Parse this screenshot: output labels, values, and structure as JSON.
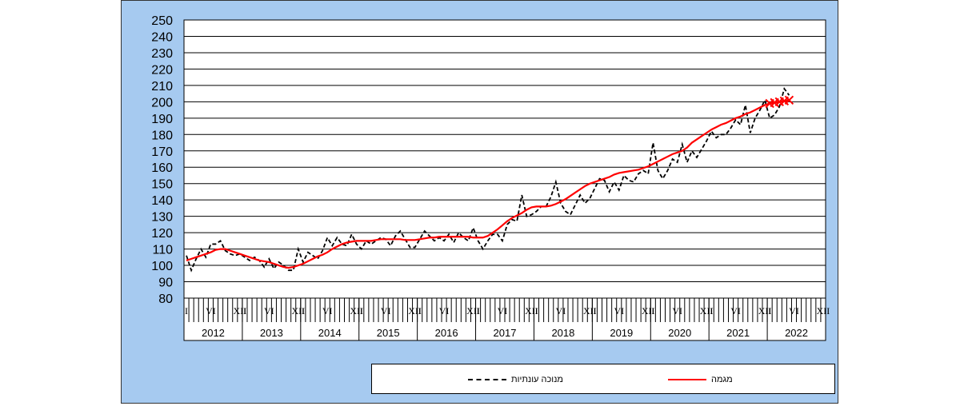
{
  "colors": {
    "background": "#a6caf0",
    "plot": "#ffffff",
    "trend": "#ff0000",
    "seasonal": "#000000"
  },
  "legend": {
    "trend_label": "מגמה",
    "seasonal_label": "מנוכה עונתיות"
  },
  "chart_data": {
    "type": "line",
    "title": "",
    "xlabel": "",
    "ylabel": "",
    "ylim": [
      80,
      250
    ],
    "yticks": [
      80,
      90,
      100,
      110,
      120,
      130,
      140,
      150,
      160,
      170,
      180,
      190,
      200,
      210,
      220,
      230,
      240,
      250
    ],
    "grid": true,
    "legend_position": "bottom",
    "years": [
      "2012",
      "2013",
      "2014",
      "2015",
      "2016",
      "2017",
      "2018",
      "2019",
      "2020",
      "2021",
      "2022"
    ],
    "month_markers": [
      "I",
      "VI",
      "XII"
    ],
    "series": [
      {
        "name": "מנוכה עונתיות",
        "style": "dashed",
        "values": [
          106,
          97,
          104,
          110,
          105,
          113,
          113,
          115,
          109,
          107,
          106,
          107,
          105,
          103,
          105,
          103,
          99,
          104,
          98,
          102,
          100,
          97,
          97,
          110,
          102,
          108,
          106,
          104,
          109,
          117,
          112,
          117,
          113,
          112,
          119,
          113,
          110,
          115,
          113,
          115,
          117,
          116,
          112,
          118,
          121,
          116,
          111,
          111,
          116,
          121,
          118,
          115,
          117,
          115,
          119,
          114,
          120,
          117,
          115,
          123,
          115,
          110,
          115,
          119,
          119,
          115,
          125,
          128,
          127,
          143,
          130,
          131,
          133,
          136,
          136,
          142,
          151,
          138,
          133,
          131,
          137,
          143,
          138,
          141,
          147,
          153,
          152,
          145,
          151,
          146,
          155,
          152,
          151,
          156,
          158,
          156,
          175,
          158,
          153,
          158,
          165,
          163,
          174,
          163,
          170,
          166,
          171,
          176,
          182,
          178,
          180,
          180,
          184,
          189,
          186,
          198,
          181,
          190,
          195,
          201,
          190,
          192,
          197,
          208,
          204
        ]
      },
      {
        "name": "מגמה",
        "style": "solid",
        "values": [
          103,
          104,
          105,
          106,
          107,
          108,
          109.5,
          110,
          110,
          109,
          108,
          107,
          106,
          105,
          104,
          103,
          102.5,
          102,
          101,
          100,
          99,
          98.5,
          99,
          100,
          101,
          102.5,
          104,
          105.5,
          106.5,
          108,
          110,
          111.5,
          113,
          114,
          114.5,
          115,
          115,
          115,
          115,
          115.5,
          116,
          116,
          116,
          116,
          116,
          115.5,
          115.5,
          115.5,
          116,
          116.5,
          117,
          117,
          117.5,
          117.5,
          117.5,
          117.5,
          117.5,
          117.5,
          117.5,
          117,
          117,
          117,
          118,
          120,
          122,
          124.5,
          127,
          129,
          130.5,
          132,
          134,
          135.5,
          136,
          136,
          136,
          136.5,
          137.5,
          139,
          140.5,
          142.5,
          144.5,
          146.5,
          148.5,
          150,
          151,
          152,
          153,
          154,
          155.5,
          156.5,
          157,
          157.5,
          158,
          158.5,
          159.5,
          160.5,
          162,
          163.5,
          165,
          166.5,
          168,
          169,
          170,
          172,
          175,
          177,
          179,
          181,
          183,
          184.5,
          186,
          187,
          188.5,
          190,
          191,
          192.5,
          193.5,
          195,
          196.5,
          198,
          199,
          199.5,
          200,
          200.5,
          201
        ],
        "projected_from_index": 120
      }
    ]
  }
}
